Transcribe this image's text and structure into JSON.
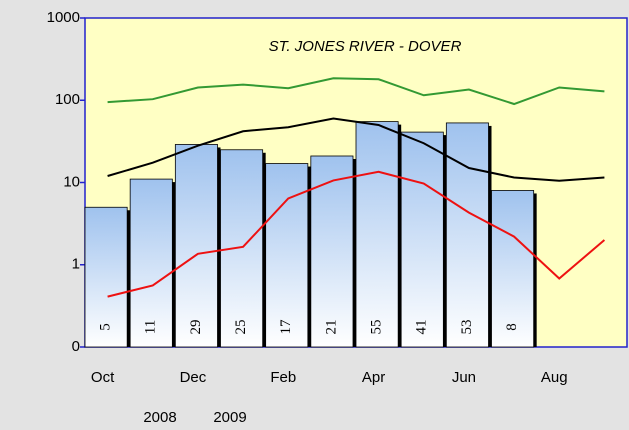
{
  "chart_data": {
    "type": "bar",
    "title": "ST. JONES RIVER - DOVER",
    "categories": [
      "Oct",
      null,
      "Dec",
      null,
      "Feb",
      null,
      "Apr",
      null,
      "Jun",
      null,
      "Aug",
      null
    ],
    "annotations": [
      "2008",
      "2009"
    ],
    "log_scale": true,
    "ylim": [
      0.1,
      1000
    ],
    "yticks": [
      {
        "value": 0.1,
        "label": "0"
      },
      1,
      10,
      100,
      1000
    ],
    "series": [
      {
        "type": "bar",
        "color": "#a8c8f0",
        "values": [
          5,
          11,
          29,
          25,
          17,
          21,
          55,
          41,
          53,
          8,
          null,
          null
        ]
      },
      {
        "type": "line",
        "color": "#339933",
        "values": [
          95,
          103,
          143,
          155,
          140,
          185,
          180,
          115,
          135,
          90,
          143,
          128
        ]
      },
      {
        "type": "line",
        "color": "#000000",
        "values": [
          12,
          17.4,
          28,
          42,
          47,
          60,
          50,
          30,
          15,
          11.5,
          10.5,
          11.5
        ]
      },
      {
        "type": "line",
        "color": "#ee1111",
        "values": [
          0.41,
          0.56,
          1.36,
          1.65,
          6.4,
          10.6,
          13.5,
          9.7,
          4.3,
          2.2,
          0.68,
          2.0
        ]
      }
    ]
  }
}
